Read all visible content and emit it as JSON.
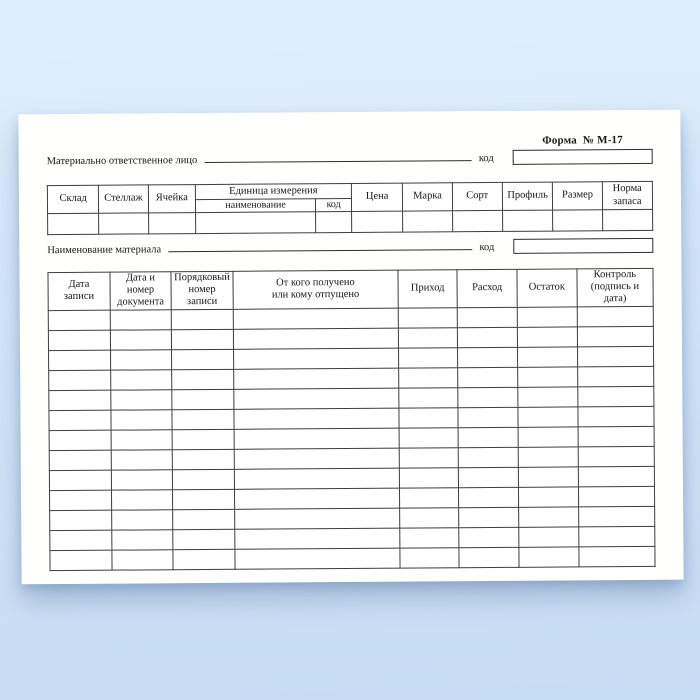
{
  "page": {
    "background_top_color": "#e0effd",
    "background_bottom_color": "#c6dcf4",
    "paper_color": "#ffffff",
    "border_color": "#3e3e3e"
  },
  "form": {
    "form_number": "Форма  № М-17",
    "responsible_person_label": "Материально ответственное лицо",
    "responsible_person_code_label": "код",
    "material_name_label": "Наименование материала",
    "material_name_code_label": "код",
    "stock_table": {
      "col_warehouse": "Склад",
      "col_rack": "Стеллаж",
      "col_cell": "Ячейка",
      "unit_group_label": "Единица измерения",
      "unit_name_label": "наименование",
      "unit_code_label": "код",
      "col_price": "Цена",
      "col_brand": "Марка",
      "col_grade": "Сорт",
      "col_profile": "Профиль",
      "col_size": "Размер",
      "col_stock_norm": "Норма\nзапаса",
      "empty_rows": 1,
      "empty_row_cells": 11
    },
    "ledger_table": {
      "headers": [
        "Дата\nзаписи",
        "Дата и номер\nдокумента",
        "Порядковый\nномер записи",
        "От кого получено\nили кому отпущено",
        "Приход",
        "Расход",
        "Остаток",
        "Контроль\n(подпись и дата)"
      ],
      "empty_rows": 13,
      "empty_row_cells": 8
    }
  }
}
